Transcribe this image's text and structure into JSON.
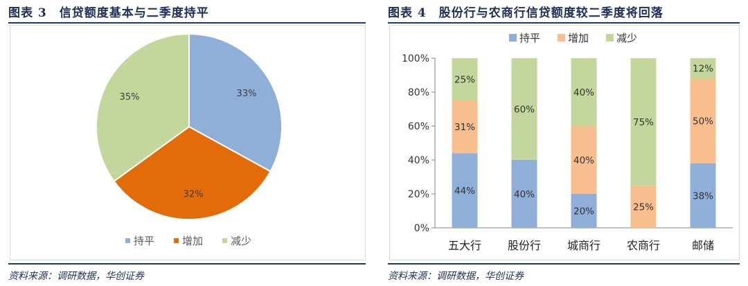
{
  "left": {
    "title": "图表 3　信贷额度基本与二季度持平",
    "source": "资料来源：调研数据，华创证券"
  },
  "right": {
    "title": "图表 4　股份行与农商行信贷额度较二季度将回落",
    "source": "资料来源：调研数据，华创证券"
  },
  "colors": {
    "hold": "#8FAED8",
    "increase": "#E36C0A",
    "decrease": "#C3D69B",
    "increase_bar": "#F9BE8E"
  },
  "chart_data": [
    {
      "type": "pie",
      "labels": [
        "持平",
        "增加",
        "减少"
      ],
      "values": [
        33,
        32,
        35
      ],
      "value_labels": [
        "33%",
        "32%",
        "35%"
      ],
      "legend_position": "bottom"
    },
    {
      "type": "bar",
      "stacked": true,
      "percent": true,
      "categories": [
        "五大行",
        "股份行",
        "城商行",
        "农商行",
        "邮储"
      ],
      "series": [
        {
          "name": "持平",
          "values": [
            44,
            40,
            20,
            0,
            38
          ],
          "labels": [
            "44%",
            "40%",
            "20%",
            "0%",
            "38%"
          ]
        },
        {
          "name": "增加",
          "values": [
            31,
            0,
            40,
            25,
            50
          ],
          "labels": [
            "31%",
            "0%",
            "40%",
            "25%",
            "50%"
          ]
        },
        {
          "name": "减少",
          "values": [
            25,
            60,
            40,
            75,
            12
          ],
          "labels": [
            "25%",
            "60%",
            "40%",
            "75%",
            "12%"
          ]
        }
      ],
      "ylim": [
        0,
        100
      ],
      "yticks": [
        "0%",
        "20%",
        "40%",
        "60%",
        "80%",
        "100%"
      ],
      "ytick_values": [
        0,
        20,
        40,
        60,
        80,
        100
      ],
      "grid": false,
      "legend_position": "top"
    }
  ]
}
